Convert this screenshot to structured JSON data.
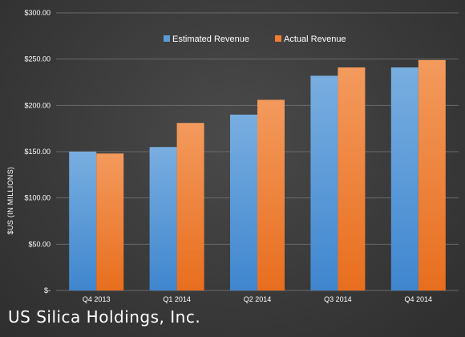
{
  "footer_title": "US Silica Holdings, Inc.",
  "colors": {
    "estimated": "#5b9bd5",
    "actual": "#ed7d31",
    "grid": "#6a6a6a",
    "text": "#ffffff"
  },
  "chart_data": {
    "type": "bar",
    "title": "",
    "xlabel": "",
    "ylabel": "$US (IN MILLIONS)",
    "ylim": [
      0,
      300
    ],
    "yticks": [
      0,
      50,
      100,
      150,
      200,
      250,
      300
    ],
    "ytick_labels": [
      "$-",
      "$50.00",
      "$100.00",
      "$150.00",
      "$200.00",
      "$250.00",
      "$300.00"
    ],
    "categories": [
      "Q4 2013",
      "Q1 2014",
      "Q2 2014",
      "Q3 2014",
      "Q4 2014"
    ],
    "series": [
      {
        "name": "Estimated Revenue",
        "values": [
          150,
          155,
          190,
          232,
          241
        ]
      },
      {
        "name": "Actual Revenue",
        "values": [
          148,
          181,
          206,
          241,
          249
        ]
      }
    ],
    "legend": "top-center",
    "grid": true
  }
}
